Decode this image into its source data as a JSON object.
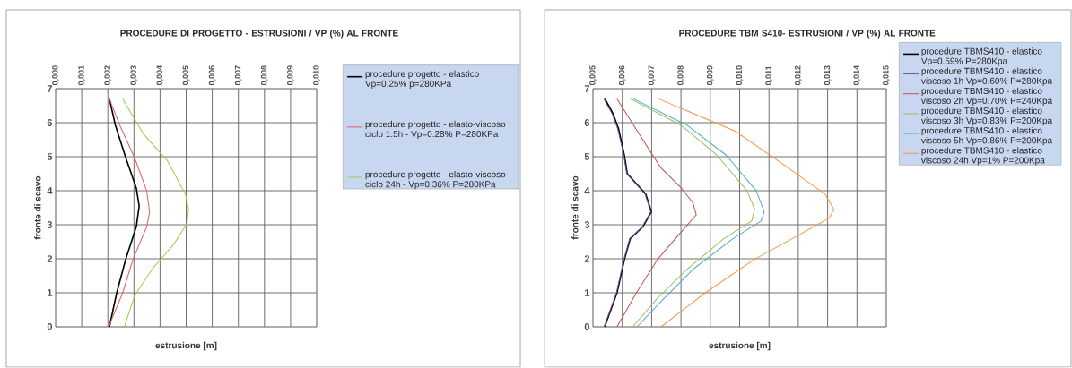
{
  "chart_data": [
    {
      "type": "line",
      "title": "PROCEDURE DI PROGETTO - ESTRUSIONI / VP (%) AL FRONTE",
      "xlabel": "estrusione [m]",
      "ylabel": "fronte di scavo",
      "xlim": [
        0,
        0.01
      ],
      "xticks": [
        {
          "value": 0,
          "label": "0,000"
        },
        {
          "value": 0.001,
          "label": "0,001"
        },
        {
          "value": 0.002,
          "label": "0,002"
        },
        {
          "value": 0.003,
          "label": "0,003"
        },
        {
          "value": 0.004,
          "label": "0,004"
        },
        {
          "value": 0.005,
          "label": "0,005"
        },
        {
          "value": 0.006,
          "label": "0,006"
        },
        {
          "value": 0.007,
          "label": "0,007"
        },
        {
          "value": 0.008,
          "label": "0,008"
        },
        {
          "value": 0.009,
          "label": "0,009"
        },
        {
          "value": 0.01,
          "label": "0,010"
        }
      ],
      "ylim": [
        0,
        7
      ],
      "yticks": [
        0,
        1,
        2,
        3,
        4,
        5,
        6,
        7
      ],
      "grid": true,
      "legend": "right",
      "series": [
        {
          "name": "procedure progetto - elastico Vp=0.25% p=280KPa",
          "color": "#000000",
          "x": [
            0.00206,
            0.00234,
            0.00269,
            0.00309,
            0.0032,
            0.00309,
            0.00269,
            0.00229,
            0.00206
          ],
          "values": [
            0,
            1.0,
            2.0,
            2.94,
            3.55,
            4.08,
            4.96,
            5.92,
            6.7
          ]
        },
        {
          "name": "procedure progetto - elasto-viscoso ciclo 1.5h - Vp=0.28% P=280KPa",
          "color": "#e06060",
          "x": [
            0.00203,
            0.00257,
            0.00297,
            0.00349,
            0.0036,
            0.00349,
            0.00303,
            0.00246,
            0.00206
          ],
          "values": [
            0,
            1.0,
            2.0,
            2.94,
            3.38,
            3.99,
            4.96,
            5.92,
            6.7
          ]
        },
        {
          "name": "procedure progetto - elasto-viscoso ciclo 24h - Vp=0.36% P=280KPa",
          "color": "#9acd4a",
          "x": [
            0.00263,
            0.00303,
            0.00371,
            0.00451,
            0.00503,
            0.00509,
            0.00497,
            0.00429,
            0.00337,
            0.00303,
            0.00257
          ],
          "values": [
            0,
            0.92,
            1.71,
            2.41,
            3.03,
            3.46,
            3.9,
            4.87,
            5.66,
            6.1,
            6.7
          ]
        }
      ]
    },
    {
      "type": "line",
      "title": "PROCEDURE TBM S410- ESTRUSIONI / VP (%) AL FRONTE",
      "xlabel": "estrusione [m]",
      "ylabel": "fronte di scavo",
      "xlim": [
        0.005,
        0.015
      ],
      "xticks": [
        {
          "value": 0.005,
          "label": "0,005"
        },
        {
          "value": 0.006,
          "label": "0,006"
        },
        {
          "value": 0.007,
          "label": "0,007"
        },
        {
          "value": 0.008,
          "label": "0,008"
        },
        {
          "value": 0.009,
          "label": "0,009"
        },
        {
          "value": 0.01,
          "label": "0,010"
        },
        {
          "value": 0.011,
          "label": "0,011"
        },
        {
          "value": 0.012,
          "label": "0,012"
        },
        {
          "value": 0.013,
          "label": "0,013"
        },
        {
          "value": 0.014,
          "label": "0,014"
        },
        {
          "value": 0.015,
          "label": "0,015"
        }
      ],
      "ylim": [
        0,
        7
      ],
      "yticks": [
        0,
        1,
        2,
        3,
        4,
        5,
        6,
        7
      ],
      "grid": true,
      "legend": "right",
      "series": [
        {
          "name": "procedure TBMS410 - elastico Vp=0.59% P=280Kpa",
          "color": "#000000",
          "x": [
            0.0054,
            0.00582,
            0.00607,
            0.00627,
            0.0067,
            0.00699,
            0.0068,
            0.00617,
            0.00607,
            0.00587,
            0.00568,
            0.00541
          ],
          "values": [
            0,
            1.0,
            1.97,
            2.59,
            2.94,
            3.38,
            3.9,
            4.5,
            5.04,
            5.83,
            6.27,
            6.7
          ]
        },
        {
          "name": "procedure TBMS410 - elastico viscoso 1h Vp=0.60% P=280Kpa",
          "color": "#7a4f9a",
          "x": [
            0.00538,
            0.0058,
            0.00605,
            0.00625,
            0.00668,
            0.00697,
            0.00678,
            0.00615,
            0.00605,
            0.00584,
            0.00565,
            0.00537
          ],
          "values": [
            0,
            1.0,
            1.97,
            2.59,
            2.94,
            3.38,
            3.9,
            4.5,
            5.04,
            5.83,
            6.27,
            6.7
          ]
        },
        {
          "name": "procedure TBMS410 - elastico viscoso 2h Vp=0.70% P=240Kpa",
          "color": "#c0504d",
          "x": [
            0.00582,
            0.00648,
            0.00719,
            0.0079,
            0.00852,
            0.00841,
            0.00801,
            0.0073,
            0.00658,
            0.00582
          ],
          "values": [
            0,
            1.0,
            1.97,
            2.68,
            3.29,
            3.64,
            4.08,
            4.69,
            5.66,
            6.7
          ]
        },
        {
          "name": "procedure TBMS410 - elastico viscoso 3h Vp=0.83% P=200Kpa",
          "color": "#9bbb59",
          "x": [
            0.00635,
            0.00719,
            0.00823,
            0.00946,
            0.01041,
            0.01051,
            0.01026,
            0.00923,
            0.00801,
            0.00628
          ],
          "values": [
            0,
            0.83,
            1.71,
            2.59,
            3.11,
            3.46,
            3.99,
            5.04,
            5.92,
            6.7
          ]
        },
        {
          "name": "procedure TBMS410 - elastico viscoso 5h Vp=0.86% P=200Kpa",
          "color": "#4bacc6",
          "x": [
            0.0065,
            0.00742,
            0.00844,
            0.00977,
            0.01073,
            0.01084,
            0.01057,
            0.00955,
            0.00822,
            0.00638
          ],
          "values": [
            0,
            0.83,
            1.71,
            2.59,
            3.11,
            3.38,
            3.99,
            5.04,
            5.92,
            6.7
          ]
        },
        {
          "name": "procedure TBMS410 - elastico viscoso 24h Vp=1% P=200Kpa",
          "color": "#f79646",
          "x": [
            0.00732,
            0.00883,
            0.01048,
            0.01198,
            0.01306,
            0.01321,
            0.01291,
            0.01148,
            0.00985,
            0.00724
          ],
          "values": [
            0,
            1.0,
            1.97,
            2.68,
            3.2,
            3.46,
            3.9,
            4.78,
            5.75,
            6.7
          ]
        }
      ]
    }
  ]
}
